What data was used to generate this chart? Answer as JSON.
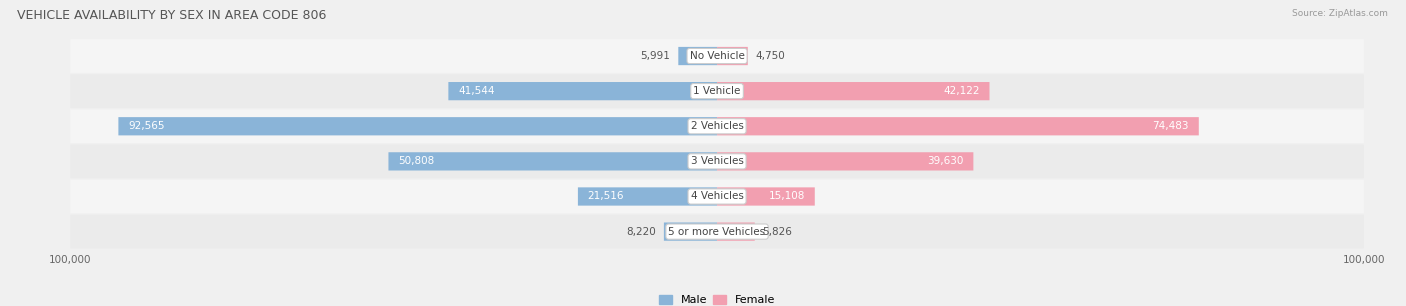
{
  "title": "VEHICLE AVAILABILITY BY SEX IN AREA CODE 806",
  "source": "Source: ZipAtlas.com",
  "categories": [
    "No Vehicle",
    "1 Vehicle",
    "2 Vehicles",
    "3 Vehicles",
    "4 Vehicles",
    "5 or more Vehicles"
  ],
  "male_values": [
    5991,
    41544,
    92565,
    50808,
    21516,
    8220
  ],
  "female_values": [
    4750,
    42122,
    74483,
    39630,
    15108,
    5826
  ],
  "male_color": "#8ab4d8",
  "female_color": "#f29fb0",
  "max_value": 100000,
  "background_color": "#f0f0f0",
  "row_color_odd": "#e8e8e8",
  "row_color_even": "#f5f5f5",
  "title_fontsize": 9,
  "axis_label_fontsize": 7.5,
  "bar_label_fontsize": 7.5,
  "legend_fontsize": 8,
  "inside_threshold": 0.12
}
